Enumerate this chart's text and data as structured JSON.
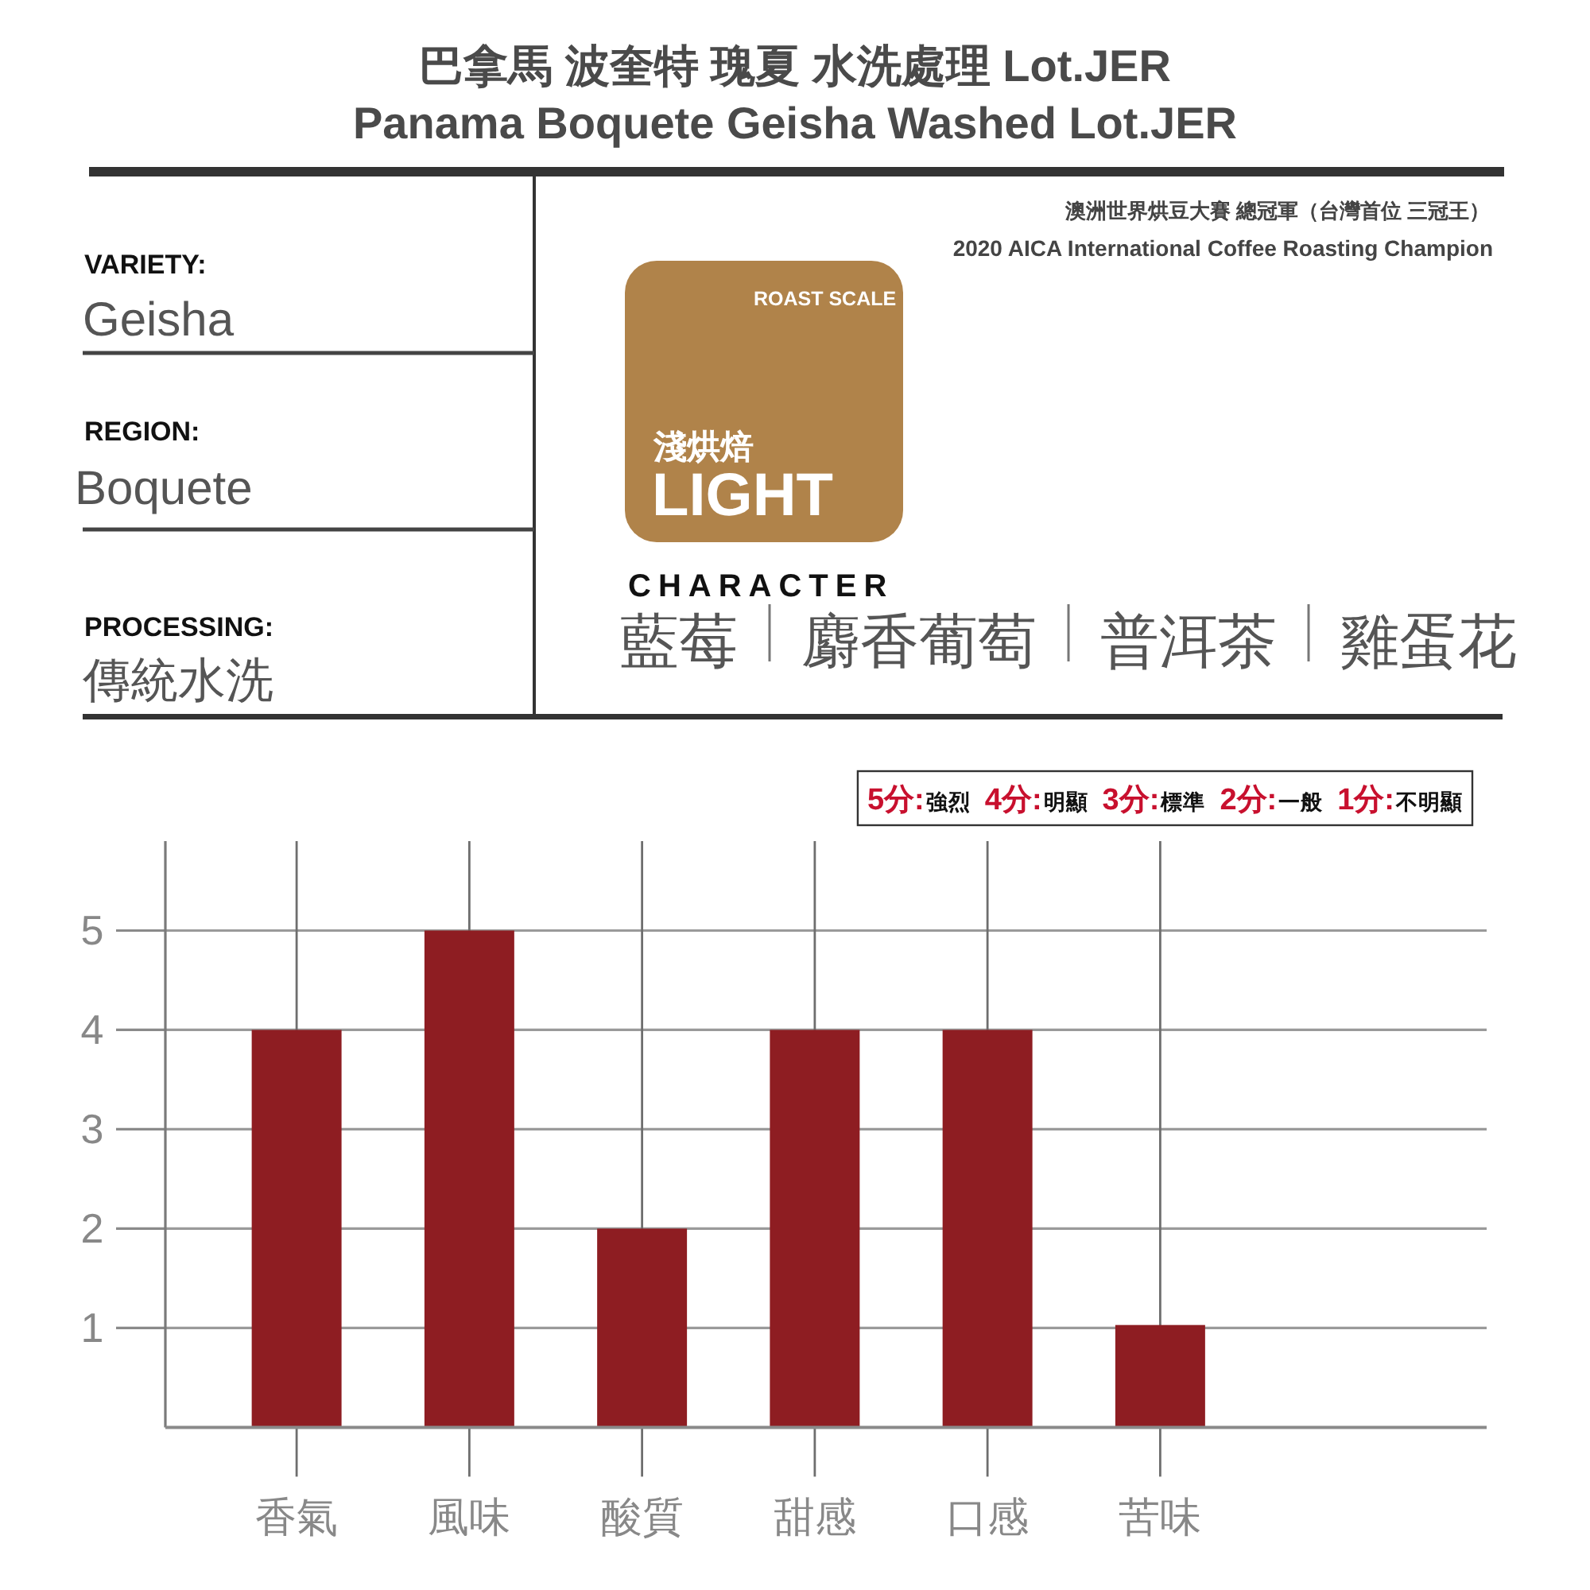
{
  "chart_data": [
    {
      "type": "other",
      "title": "巴拿馬 波奎特 瑰夏 水洗處理 Lot.JER",
      "subtitle": "Panama Boquete Geisha Washed Lot.JER",
      "annotations": [
        "VARIETY:",
        "Geisha",
        "REGION:",
        "Boquete",
        "PROCESSING:",
        "傳統水洗",
        "澳洲世界烘豆大賽 總冠軍（台灣首位 三冠王）",
        "2020 AICA International Coffee Roasting Champion",
        "ROAST SCALE",
        "淺烘焙",
        "LIGHT",
        "CHARACTER",
        "藍莓",
        "麝香葡萄",
        "普洱茶",
        "雞蛋花"
      ]
    },
    {
      "type": "bar",
      "categories": [
        "香氣",
        "風味",
        "酸質",
        "甜感",
        "口感",
        "苦味"
      ],
      "values": [
        4,
        5,
        2,
        4,
        4,
        1.03
      ],
      "color": "#8e1d22",
      "ylim": [
        0,
        5.9
      ],
      "yticks": [
        1,
        2,
        3,
        4,
        5
      ],
      "grid": true,
      "annotations": [
        "5分:",
        "強烈",
        "4分:",
        "明顯",
        "3分:",
        "標準",
        "2分:",
        "一般",
        "1分:",
        "不明顯"
      ]
    }
  ]
}
